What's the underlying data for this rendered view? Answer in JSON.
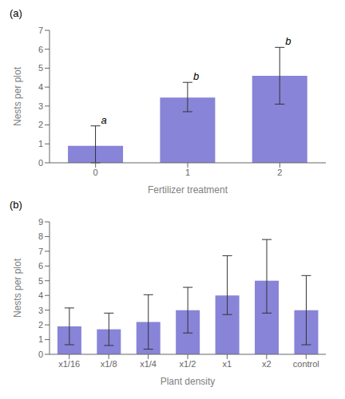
{
  "chart_data": [
    {
      "type": "bar",
      "title": "(a)",
      "xlabel": "Fertilizer treatment",
      "ylabel": "Nests per plot",
      "categories": [
        "0",
        "1",
        "2"
      ],
      "values": [
        0.9,
        3.45,
        4.6
      ],
      "error_lower": [
        0.9,
        0.75,
        1.5
      ],
      "error_upper": [
        1.05,
        0.8,
        1.5
      ],
      "annotations": [
        "a",
        "b",
        "b"
      ],
      "color": "#8884d8",
      "ylim": [
        0,
        7
      ],
      "yticks": [
        0,
        1,
        2,
        3,
        4,
        5,
        6,
        7
      ],
      "grid": false
    },
    {
      "type": "bar",
      "title": "(b)",
      "xlabel": "Plant density",
      "ylabel": "Nests per plot",
      "categories": [
        "x1/16",
        "x1/8",
        "x1/4",
        "x1/2",
        "x1",
        "x2",
        "control"
      ],
      "values": [
        1.9,
        1.7,
        2.2,
        3.0,
        4.0,
        5.0,
        3.0
      ],
      "error_lower": [
        1.25,
        1.1,
        1.85,
        1.55,
        1.3,
        2.2,
        2.35
      ],
      "error_upper": [
        1.25,
        1.1,
        1.85,
        1.55,
        2.7,
        2.8,
        2.35
      ],
      "color": "#8884d8",
      "ylim": [
        0,
        9
      ],
      "yticks": [
        0,
        1,
        2,
        3,
        4,
        5,
        6,
        7,
        8,
        9
      ],
      "grid": false
    }
  ]
}
